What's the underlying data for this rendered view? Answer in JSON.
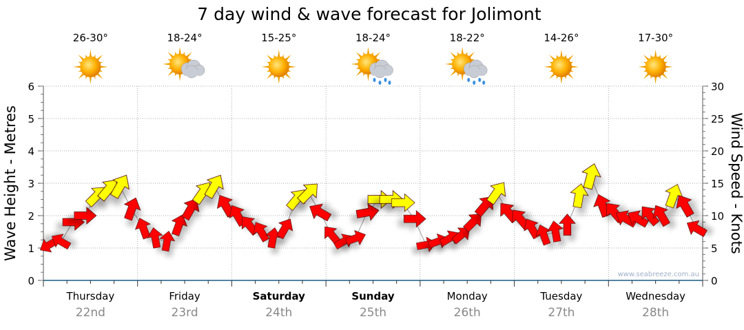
{
  "chart_data": {
    "type": "scatter",
    "title": "7 day wind & wave forecast for Jolimont",
    "ylabel_left": "Wave Height - Metres",
    "ylabel_right": "Wind Speed - Knots",
    "ylim_left": [
      0,
      6
    ],
    "ylim_right": [
      0,
      30
    ],
    "yticks_left": [
      "0",
      "1",
      "2",
      "3",
      "4",
      "5",
      "6"
    ],
    "yticks_right": [
      "0",
      "5",
      "10",
      "15",
      "20",
      "25",
      "30"
    ],
    "grid": true,
    "watermark": "www.seabreeze.com.au",
    "yellow_threshold_knots": 12,
    "colors": {
      "strong": "#ffff00",
      "light": "#ff0000",
      "axis": "#1a5a80",
      "date": "#888888"
    },
    "days": [
      {
        "name": "Thursday",
        "date": "22nd",
        "bold": false,
        "temp": "26-30°",
        "weather": "sunny"
      },
      {
        "name": "Friday",
        "date": "23rd",
        "bold": false,
        "temp": "18-24°",
        "weather": "partly-cloudy"
      },
      {
        "name": "Saturday",
        "date": "24th",
        "bold": true,
        "temp": "15-25°",
        "weather": "sunny"
      },
      {
        "name": "Sunday",
        "date": "25th",
        "bold": true,
        "temp": "18-24°",
        "weather": "showers"
      },
      {
        "name": "Monday",
        "date": "26th",
        "bold": false,
        "temp": "18-22°",
        "weather": "showers"
      },
      {
        "name": "Tuesday",
        "date": "27th",
        "bold": false,
        "temp": "14-26°",
        "weather": "sunny"
      },
      {
        "name": "Wednesday",
        "date": "28th",
        "bold": false,
        "temp": "17-30°",
        "weather": "sunny"
      }
    ],
    "wind_interval_hours": 3,
    "wind_speed_knots": [
      5.5,
      6.0,
      9.0,
      10.0,
      13.0,
      14.0,
      14.5,
      11.0,
      8.0,
      6.5,
      6.0,
      8.5,
      11.0,
      13.5,
      14.5,
      11.5,
      10.0,
      8.5,
      7.5,
      6.5,
      8.0,
      12.5,
      13.5,
      10.5,
      7.0,
      6.0,
      6.5,
      10.5,
      12.5,
      12.5,
      12.0,
      9.5,
      5.5,
      6.0,
      6.5,
      7.0,
      9.0,
      11.5,
      13.5,
      10.5,
      9.5,
      8.0,
      7.0,
      7.5,
      8.5,
      13.0,
      16.0,
      11.5,
      10.5,
      9.5,
      9.5,
      10.0,
      10.0,
      13.0,
      11.5,
      8.0
    ],
    "wind_arrow_direction_deg": [
      240,
      300,
      90,
      90,
      45,
      40,
      30,
      20,
      340,
      350,
      10,
      20,
      30,
      35,
      30,
      330,
      330,
      320,
      330,
      10,
      30,
      40,
      45,
      300,
      320,
      60,
      70,
      80,
      90,
      90,
      90,
      90,
      80,
      70,
      60,
      50,
      45,
      40,
      35,
      320,
      320,
      330,
      340,
      350,
      0,
      10,
      15,
      340,
      320,
      300,
      300,
      320,
      330,
      20,
      330,
      300
    ]
  }
}
